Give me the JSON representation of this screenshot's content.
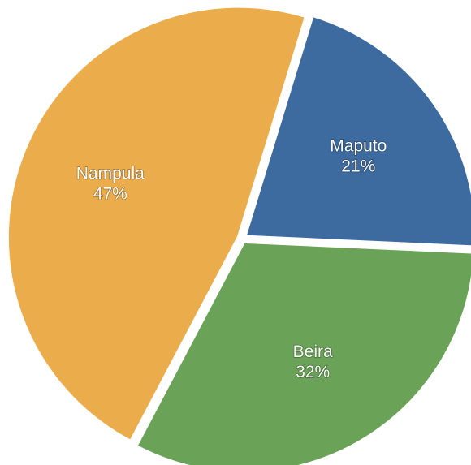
{
  "chart_data": {
    "type": "pie",
    "categories": [
      "Maputo",
      "Beira",
      "Nampula"
    ],
    "values": [
      21,
      32,
      47
    ],
    "value_labels": [
      "21%",
      "32%",
      "47%"
    ],
    "colors": [
      "#3d6b9f",
      "#6aa357",
      "#ebad4b"
    ]
  }
}
